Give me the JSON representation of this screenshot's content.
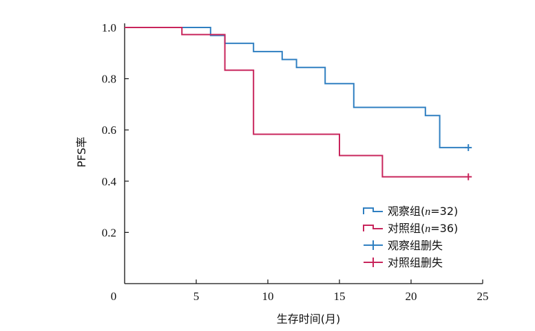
{
  "chart_data": {
    "type": "line",
    "subtype": "kaplan-meier-step",
    "xlabel": "生存时间(月)",
    "ylabel": "PFS率",
    "xlim": [
      0,
      25
    ],
    "ylim": [
      0,
      1.0
    ],
    "x_ticks": [
      0,
      5,
      10,
      15,
      20,
      25
    ],
    "x_tick_labels": [
      "0",
      "5",
      "10",
      "15",
      "20",
      "25"
    ],
    "y_ticks": [
      0.2,
      0.4,
      0.6,
      0.8,
      1.0
    ],
    "y_tick_labels": [
      "0.2",
      "0.4",
      "0.6",
      "0.8",
      "1.0"
    ],
    "grid": false,
    "legend_position": "bottom-right",
    "series": [
      {
        "name": "观察组(n=32)",
        "name_prefix": "观察组(",
        "name_italic": "n",
        "name_suffix": "=32)",
        "color": "#2f7fc1",
        "points": [
          [
            0,
            1.0
          ],
          [
            6,
            1.0
          ],
          [
            6,
            0.969
          ],
          [
            7,
            0.969
          ],
          [
            7,
            0.938
          ],
          [
            9,
            0.938
          ],
          [
            9,
            0.906
          ],
          [
            11,
            0.906
          ],
          [
            11,
            0.875
          ],
          [
            12,
            0.875
          ],
          [
            12,
            0.844
          ],
          [
            14,
            0.844
          ],
          [
            14,
            0.781
          ],
          [
            16,
            0.781
          ],
          [
            16,
            0.688
          ],
          [
            21,
            0.688
          ],
          [
            21,
            0.656
          ],
          [
            22,
            0.656
          ],
          [
            22,
            0.531
          ],
          [
            24,
            0.531
          ]
        ]
      },
      {
        "name": "对照组(n=36)",
        "name_prefix": "对照组(",
        "name_italic": "n",
        "name_suffix": "=36)",
        "color": "#c8245b",
        "points": [
          [
            0,
            1.0
          ],
          [
            4,
            1.0
          ],
          [
            4,
            0.972
          ],
          [
            7,
            0.972
          ],
          [
            7,
            0.833
          ],
          [
            9,
            0.833
          ],
          [
            9,
            0.583
          ],
          [
            15,
            0.583
          ],
          [
            15,
            0.5
          ],
          [
            18,
            0.5
          ],
          [
            18,
            0.417
          ],
          [
            24,
            0.417
          ]
        ]
      }
    ],
    "censored": [
      {
        "name": "观察组删失",
        "color": "#2f7fc1",
        "points": [
          [
            24,
            0.531
          ]
        ]
      },
      {
        "name": "对照组删失",
        "color": "#c8245b",
        "points": [
          [
            24,
            0.417
          ]
        ]
      }
    ]
  }
}
